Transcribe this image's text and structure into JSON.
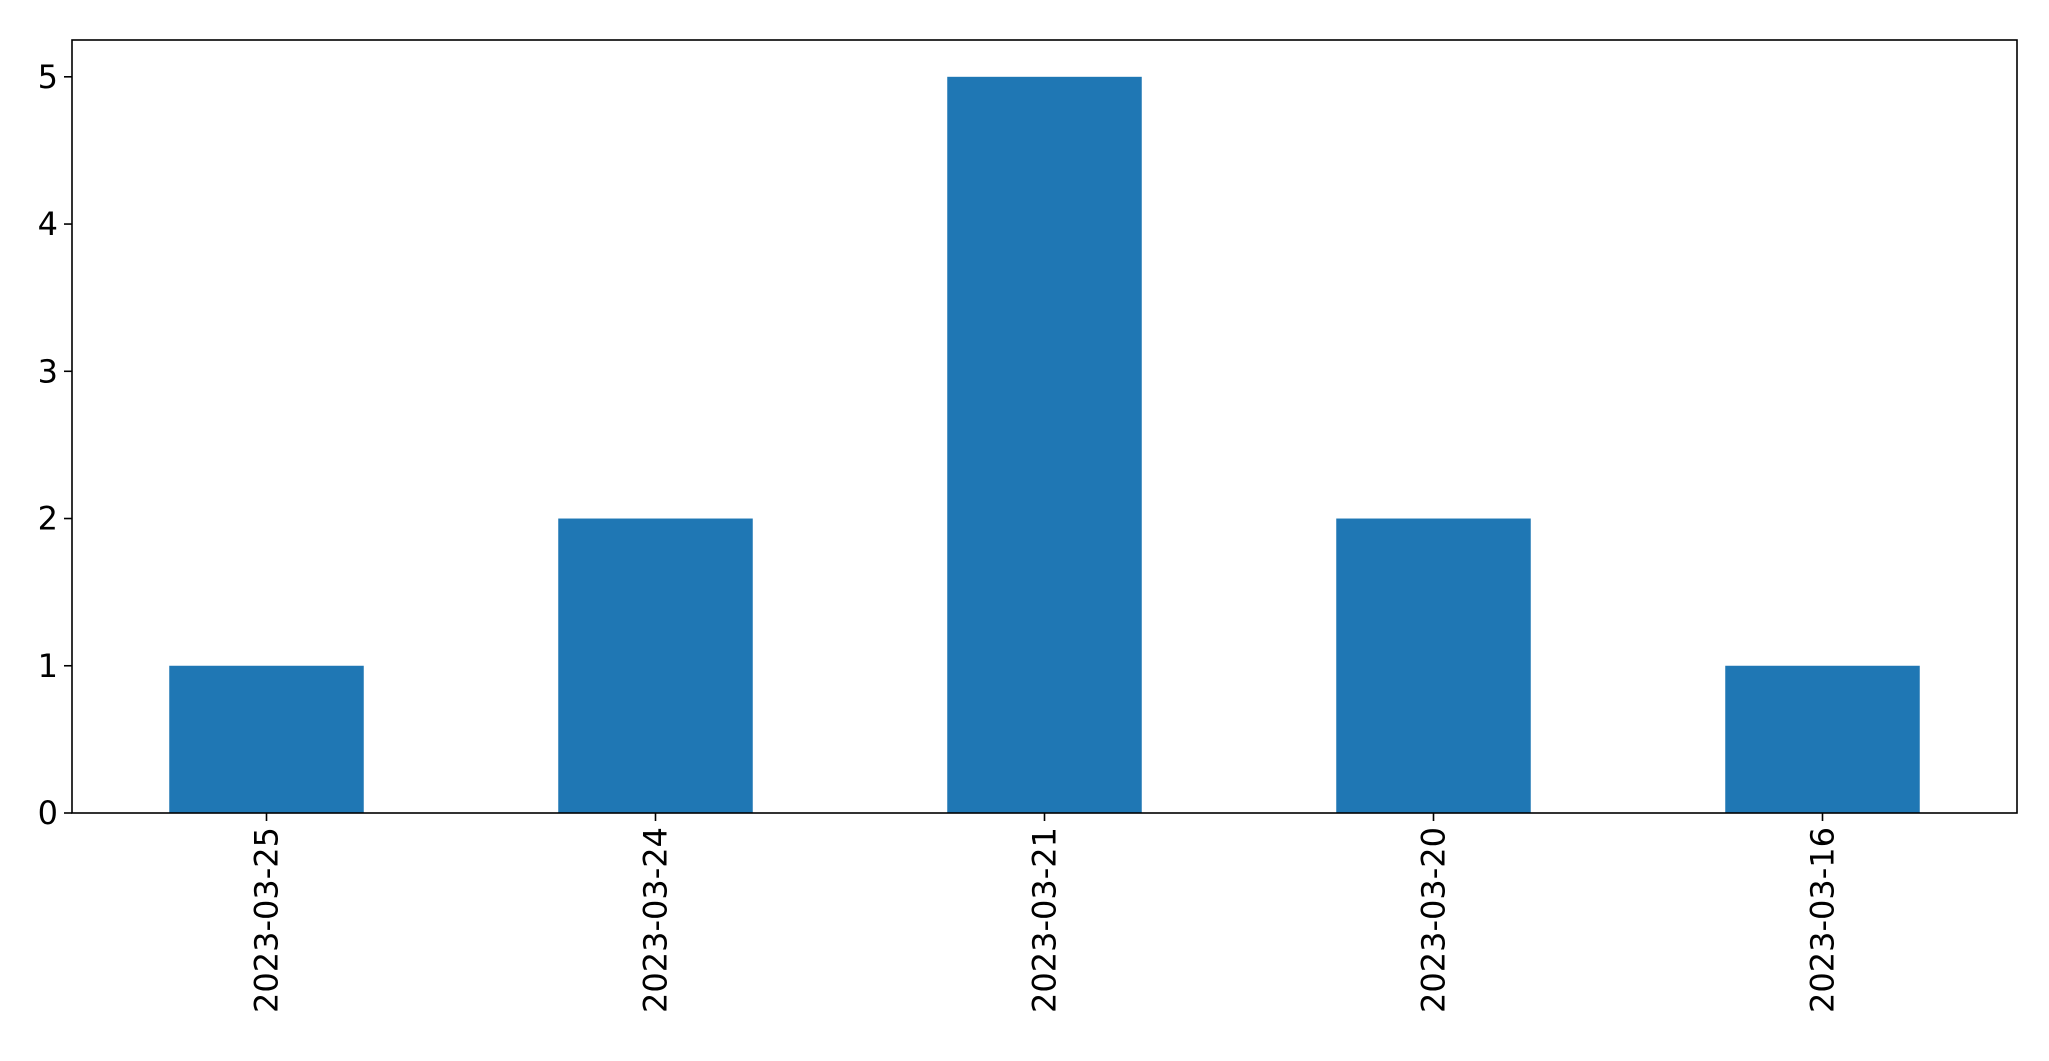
{
  "chart_data": {
    "type": "bar",
    "categories": [
      "2023-03-25",
      "2023-03-24",
      "2023-03-21",
      "2023-03-20",
      "2023-03-16"
    ],
    "values": [
      1,
      2,
      5,
      2,
      1
    ],
    "title": "",
    "xlabel": "",
    "ylabel": "",
    "ylim": [
      0,
      5.25
    ],
    "yticks": [
      0,
      1,
      2,
      3,
      4,
      5
    ],
    "grid": false,
    "bar_color": "#1f77b4"
  }
}
